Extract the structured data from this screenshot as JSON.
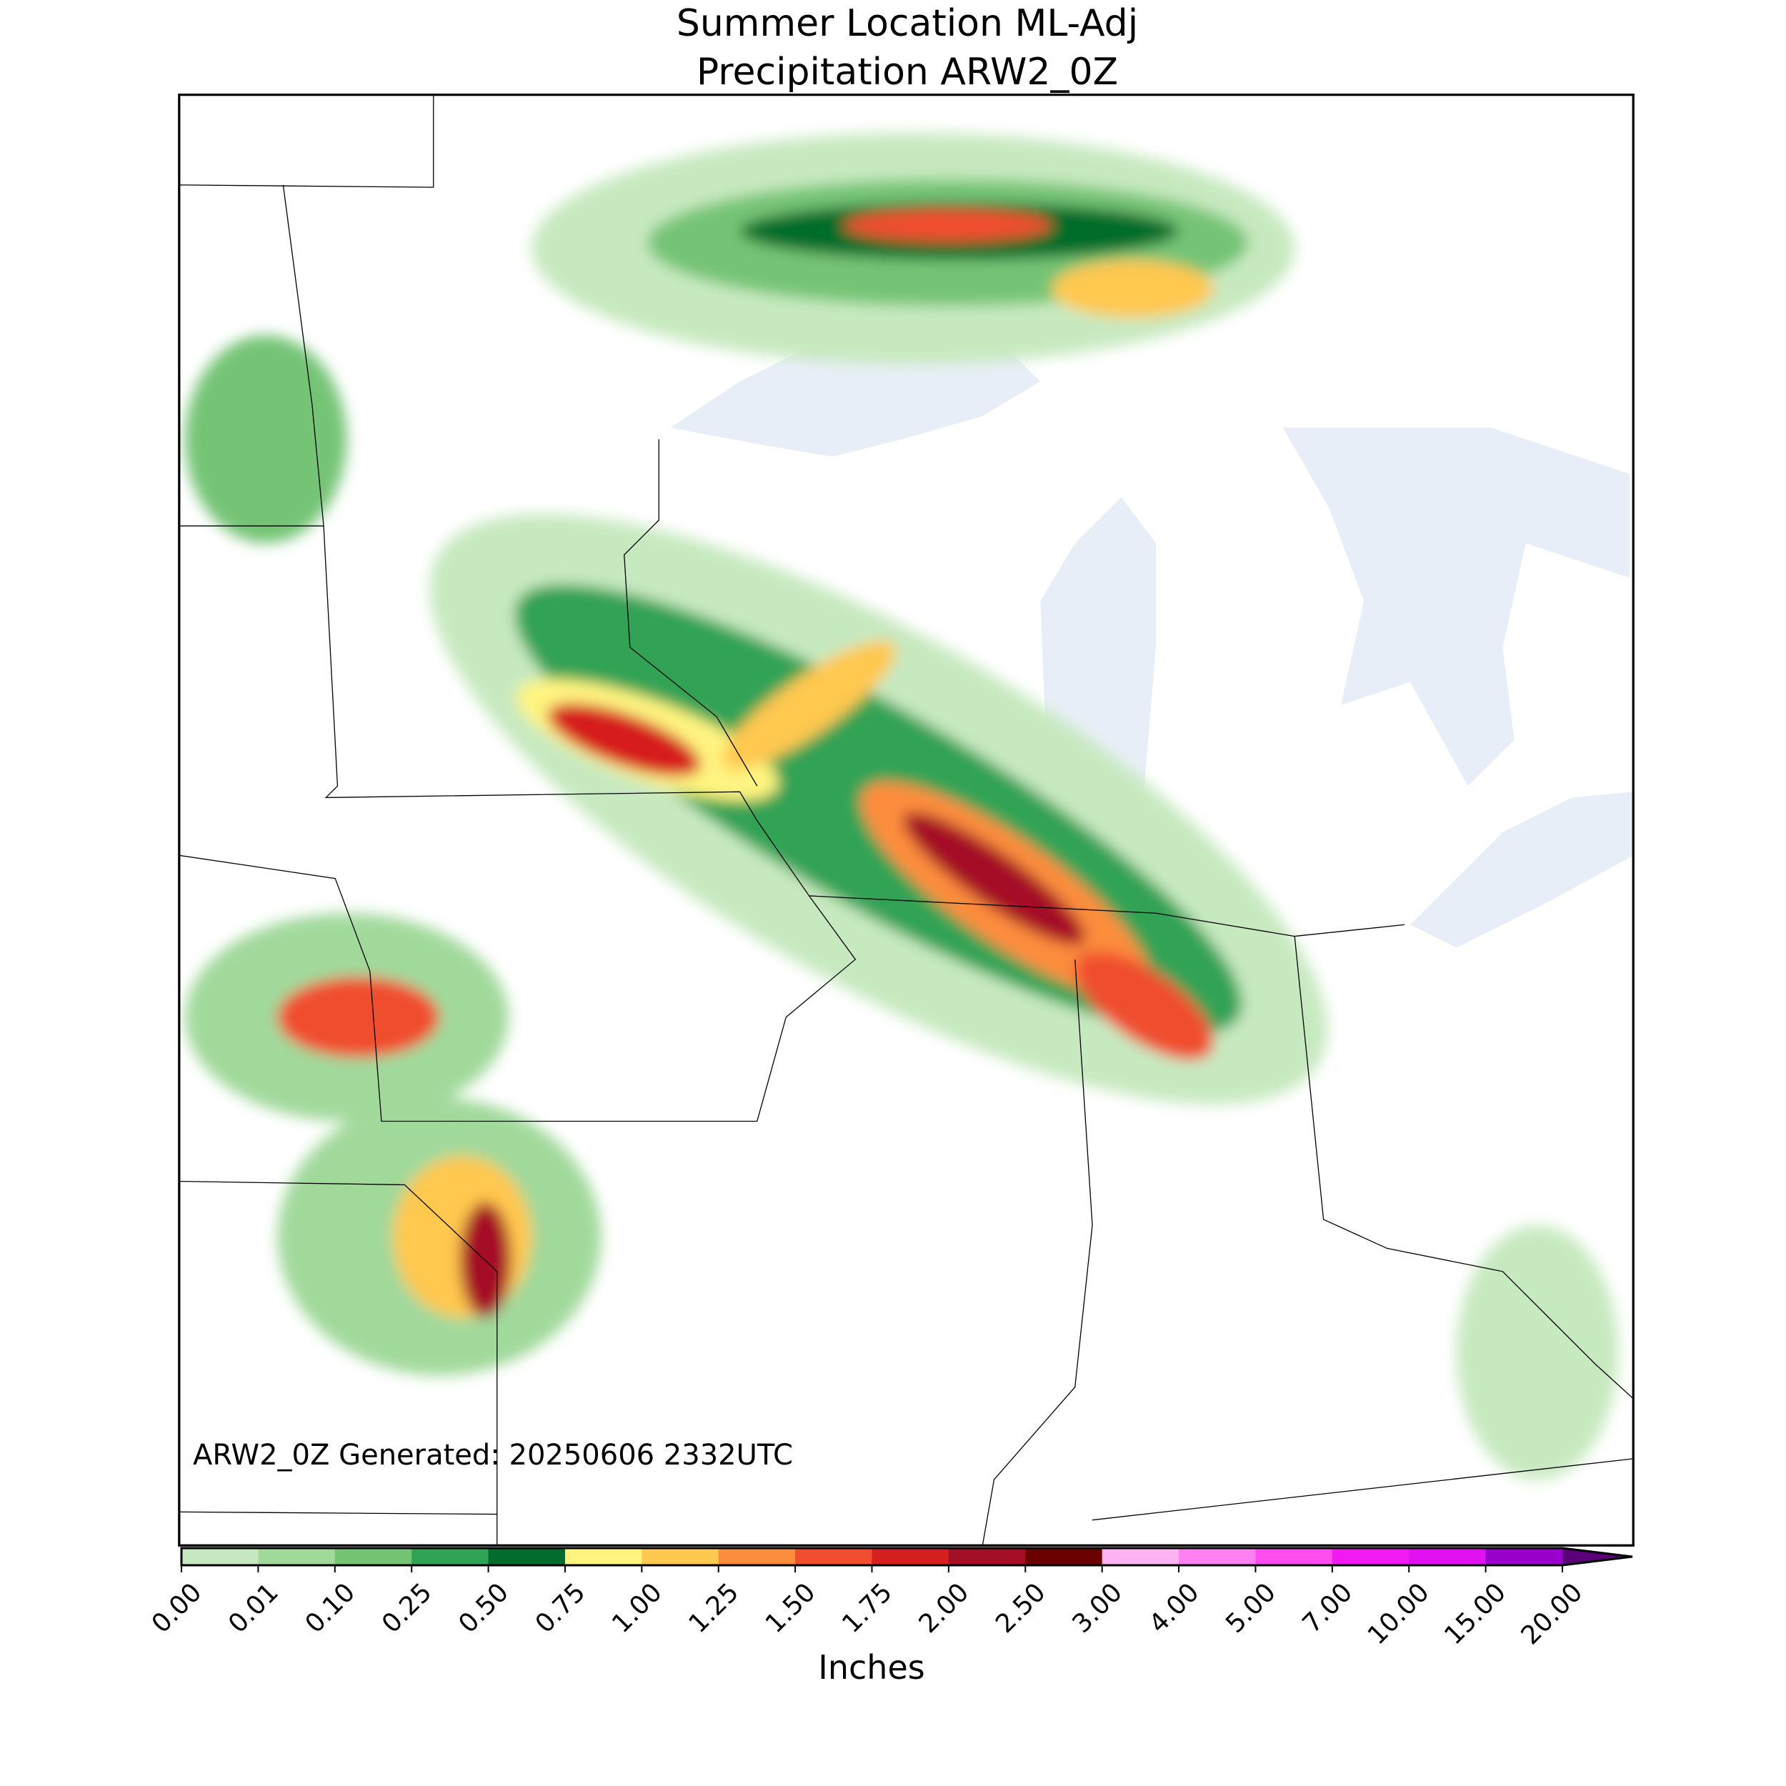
{
  "title": {
    "line1": "Summer Location ML-Adj",
    "line2": "Precipitation ARW2_0Z"
  },
  "map": {
    "annotation": "ARW2_0Z Generated: 20250606 2332UTC"
  },
  "colorbar": {
    "label": "Inches",
    "ticks": [
      {
        "value": 0,
        "label": "0.00"
      },
      0.01,
      {
        "value": 0.1,
        "label": "0.10"
      },
      0.25,
      {
        "value": 0.5,
        "label": "0.50"
      },
      0.75,
      {
        "value": 1,
        "label": "1.00"
      },
      1.25,
      {
        "value": 1.5,
        "label": "1.50"
      },
      1.75,
      {
        "value": 2,
        "label": "2.00"
      },
      {
        "value": 2.5,
        "label": "2.50"
      },
      {
        "value": 3,
        "label": "3.00"
      },
      {
        "value": 4,
        "label": "4.00"
      },
      {
        "value": 5,
        "label": "5.00"
      },
      {
        "value": 7,
        "label": "7.00"
      },
      {
        "value": 10,
        "label": "10.00"
      },
      {
        "value": 15,
        "label": "15.00"
      },
      {
        "value": 20,
        "label": "20.00"
      }
    ],
    "colors": [
      "#ffffff",
      "#c7e9c0",
      "#a1d99b",
      "#74c476",
      "#31a354",
      "#006d2c",
      "#fff480",
      "#ffc84f",
      "#fd8d3c",
      "#f04e2e",
      "#d61f1f",
      "#a50f26",
      "#6b0000",
      "#ffb3f0",
      "#ff80f0",
      "#ff4df0",
      "#f21af2",
      "#e010f0",
      "#9900cc"
    ],
    "extend_color": "#5a0078"
  }
}
